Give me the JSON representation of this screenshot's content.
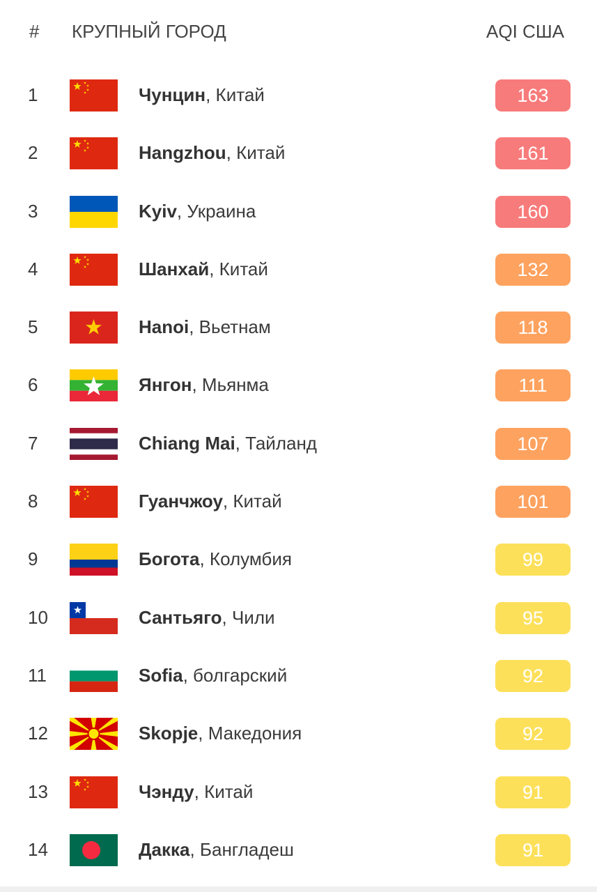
{
  "header": {
    "rank": "#",
    "city": "КРУПНЫЙ ГОРОД",
    "aqi": "AQI США"
  },
  "colors": {
    "unhealthy": "#f87b7b",
    "sensitive": "#fea25f",
    "moderate": "#fde05a"
  },
  "rows": [
    {
      "rank": "1",
      "city": "Чунцин",
      "country": ", Китай",
      "aqi": "163",
      "level": "unhealthy",
      "flag": "china"
    },
    {
      "rank": "2",
      "city": "Hangzhou",
      "country": ", Китай",
      "aqi": "161",
      "level": "unhealthy",
      "flag": "china"
    },
    {
      "rank": "3",
      "city": "Kyiv",
      "country": ", Украина",
      "aqi": "160",
      "level": "unhealthy",
      "flag": "ukraine"
    },
    {
      "rank": "4",
      "city": "Шанхай",
      "country": ", Китай",
      "aqi": "132",
      "level": "sensitive",
      "flag": "china"
    },
    {
      "rank": "5",
      "city": "Hanoi",
      "country": ", Вьетнам",
      "aqi": "118",
      "level": "sensitive",
      "flag": "vietnam"
    },
    {
      "rank": "6",
      "city": "Янгон",
      "country": ", Мьянма",
      "aqi": "111",
      "level": "sensitive",
      "flag": "myanmar"
    },
    {
      "rank": "7",
      "city": "Chiang Mai",
      "country": ", Тайланд",
      "aqi": "107",
      "level": "sensitive",
      "flag": "thailand"
    },
    {
      "rank": "8",
      "city": "Гуанчжоу",
      "country": ", Китай",
      "aqi": "101",
      "level": "sensitive",
      "flag": "china"
    },
    {
      "rank": "9",
      "city": "Богота",
      "country": ", Колумбия",
      "aqi": "99",
      "level": "moderate",
      "flag": "colombia"
    },
    {
      "rank": "10",
      "city": "Сантьяго",
      "country": ", Чили",
      "aqi": "95",
      "level": "moderate",
      "flag": "chile"
    },
    {
      "rank": "11",
      "city": "Sofia",
      "country": ", болгарский",
      "aqi": "92",
      "level": "moderate",
      "flag": "bulgaria"
    },
    {
      "rank": "12",
      "city": "Skopje",
      "country": ", Македония",
      "aqi": "92",
      "level": "moderate",
      "flag": "macedonia"
    },
    {
      "rank": "13",
      "city": "Чэнду",
      "country": ", Китай",
      "aqi": "91",
      "level": "moderate",
      "flag": "china"
    },
    {
      "rank": "14",
      "city": "Дакка",
      "country": ", Бангладеш",
      "aqi": "91",
      "level": "moderate",
      "flag": "bangladesh"
    }
  ]
}
